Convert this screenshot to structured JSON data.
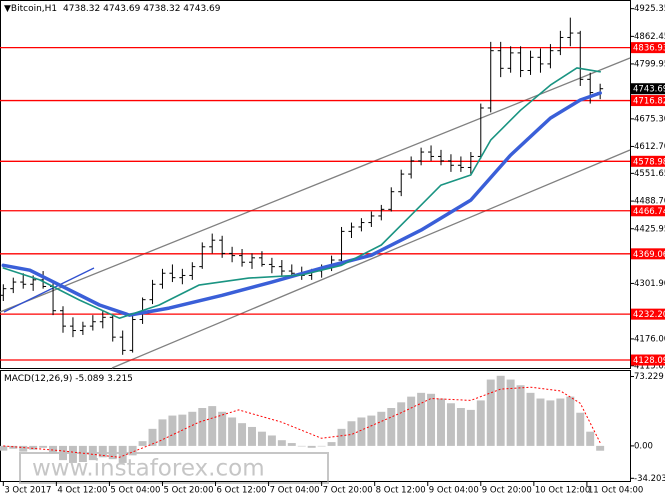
{
  "chart_data": [
    {
      "type": "ohlc",
      "title": "Bitcoin,H1",
      "header_values": [
        4738.32,
        4743.69,
        4738.32,
        4743.69
      ],
      "color": "#000000",
      "x": [
        20,
        23,
        26,
        29,
        32,
        35,
        38,
        41,
        44,
        47,
        50,
        53,
        56,
        59,
        62,
        65,
        68,
        71,
        74,
        77,
        80,
        83,
        86,
        89,
        92,
        95,
        98,
        101,
        104,
        107,
        110,
        113,
        116,
        119,
        122,
        125,
        128,
        131,
        134,
        137,
        140,
        143,
        146,
        149,
        152,
        155,
        158,
        161,
        164,
        167,
        170,
        173,
        176,
        179,
        182,
        185,
        188,
        191,
        194,
        197,
        200
      ],
      "open": [
        4275,
        4290,
        4305,
        4300,
        4310,
        4295,
        4240,
        4205,
        4195,
        4205,
        4215,
        4225,
        4180,
        4150,
        4220,
        4265,
        4300,
        4325,
        4315,
        4320,
        4340,
        4385,
        4400,
        4370,
        4365,
        4350,
        4360,
        4345,
        4340,
        4330,
        4325,
        4320,
        4330,
        4340,
        4355,
        4420,
        4430,
        4440,
        4455,
        4470,
        4510,
        4550,
        4580,
        4600,
        4590,
        4580,
        4570,
        4565,
        4590,
        4700,
        4830,
        4790,
        4825,
        4785,
        4815,
        4800,
        4830,
        4860,
        4870,
        4765,
        4735
      ],
      "high": [
        4300,
        4315,
        4325,
        4320,
        4330,
        4305,
        4250,
        4225,
        4215,
        4230,
        4240,
        4230,
        4195,
        4230,
        4270,
        4310,
        4335,
        4345,
        4335,
        4350,
        4395,
        4415,
        4410,
        4385,
        4380,
        4370,
        4375,
        4360,
        4355,
        4345,
        4340,
        4335,
        4345,
        4365,
        4430,
        4440,
        4450,
        4465,
        4480,
        4520,
        4560,
        4590,
        4610,
        4615,
        4605,
        4595,
        4590,
        4600,
        4710,
        4850,
        4850,
        4840,
        4840,
        4830,
        4835,
        4845,
        4875,
        4905,
        4875,
        4780,
        4755
      ],
      "low": [
        4262,
        4280,
        4290,
        4285,
        4290,
        4230,
        4190,
        4180,
        4185,
        4195,
        4200,
        4170,
        4140,
        4145,
        4210,
        4255,
        4290,
        4305,
        4300,
        4310,
        4335,
        4370,
        4360,
        4350,
        4340,
        4335,
        4340,
        4325,
        4320,
        4315,
        4310,
        4310,
        4315,
        4330,
        4350,
        4405,
        4420,
        4430,
        4445,
        4465,
        4500,
        4540,
        4570,
        4580,
        4570,
        4555,
        4555,
        4550,
        4585,
        4690,
        4770,
        4780,
        4770,
        4775,
        4780,
        4790,
        4820,
        4840,
        4750,
        4710,
        4720
      ],
      "close": [
        4290,
        4305,
        4300,
        4310,
        4295,
        4240,
        4205,
        4195,
        4205,
        4215,
        4225,
        4180,
        4150,
        4220,
        4265,
        4300,
        4325,
        4315,
        4320,
        4340,
        4385,
        4400,
        4370,
        4365,
        4350,
        4360,
        4345,
        4340,
        4330,
        4325,
        4320,
        4330,
        4340,
        4355,
        4420,
        4430,
        4440,
        4455,
        4470,
        4510,
        4550,
        4580,
        4600,
        4590,
        4580,
        4570,
        4565,
        4590,
        4700,
        4830,
        4790,
        4825,
        4785,
        4815,
        4800,
        4830,
        4860,
        4870,
        4765,
        4735,
        4743.69
      ],
      "lines": [
        {
          "color": "#3a5fd8",
          "width": 3.5,
          "x": [
            20,
            28,
            37,
            49,
            58,
            70,
            86,
            101,
            116,
            131,
            146,
            161,
            173,
            185,
            194,
            200
          ],
          "values": [
            4343,
            4332,
            4298,
            4253,
            4230,
            4246,
            4275,
            4305,
            4337,
            4366,
            4423,
            4491,
            4593,
            4677,
            4718,
            4734
          ]
        },
        {
          "color": "#1a9482",
          "width": 1.6,
          "x": [
            20,
            31,
            43,
            55,
            67,
            79,
            94,
            110,
            122,
            134,
            143,
            152,
            161,
            167,
            176,
            185,
            193,
            200
          ],
          "values": [
            4337,
            4310,
            4264,
            4223,
            4253,
            4298,
            4314,
            4321,
            4343,
            4389,
            4457,
            4525,
            4548,
            4627,
            4695,
            4752,
            4791,
            4782
          ]
        }
      ],
      "levels": {
        "color": "#ff0000",
        "values": [
          4836.93,
          4716.82,
          4578.98,
          4466.74,
          4369.06,
          {
            "value": 4232.2,
            "label": "4232.20"
          },
          4128.09
        ]
      },
      "last_price": 4743.69,
      "xlim": [
        19,
        209
      ],
      "xticks": [
        {
          "value": 20,
          "label": "3 Oct 2017"
        },
        {
          "value": 36,
          "label": "4 Oct 12:00"
        },
        {
          "value": 52,
          "label": "5 Oct 04:00"
        },
        {
          "value": 68,
          "label": "5 Oct 20:00"
        },
        {
          "value": 84,
          "label": "6 Oct 12:00"
        },
        {
          "value": 100,
          "label": "7 Oct 04:00"
        },
        {
          "value": 116,
          "label": "7 Oct 20:00"
        },
        {
          "value": 132,
          "label": "8 Oct 12:00"
        },
        {
          "value": 148,
          "label": "9 Oct 04:00"
        },
        {
          "value": 164,
          "label": "9 Oct 20:00"
        },
        {
          "value": 180,
          "label": "10 Oct 12:00"
        },
        {
          "value": 196,
          "label": "11 Oct 04:00"
        }
      ],
      "ylim": [
        4110,
        4945
      ],
      "yticks": [
        4925.35,
        4862.45,
        4799.95,
        {
          "value": 4675.3,
          "label": "4675.30"
        },
        {
          "value": 4612.7,
          "label": "4612.70"
        },
        4551.65,
        {
          "value": 4488.7,
          "label": "4488.70"
        },
        4425.95,
        {
          "value": 4301.9,
          "label": "4301.90"
        },
        {
          "value": 4176,
          "label": "4176.00"
        },
        4115.05
      ]
    },
    {
      "type": "bar",
      "title": "MACD(12,26,9)",
      "header_values": [
        -5.089,
        3.215
      ],
      "color": "#c0c0c0",
      "x": [
        20,
        23,
        26,
        29,
        32,
        35,
        38,
        41,
        44,
        47,
        50,
        53,
        56,
        59,
        62,
        65,
        68,
        71,
        74,
        77,
        80,
        83,
        86,
        89,
        92,
        95,
        98,
        101,
        104,
        107,
        110,
        113,
        116,
        119,
        122,
        125,
        128,
        131,
        134,
        137,
        140,
        143,
        146,
        149,
        152,
        155,
        158,
        161,
        164,
        167,
        170,
        173,
        176,
        179,
        182,
        185,
        188,
        191,
        194,
        197,
        200
      ],
      "values": [
        -5,
        -3,
        -6,
        -4,
        -2,
        -8,
        -15,
        -18,
        -17,
        -15,
        -12,
        -14,
        -18,
        -10,
        5,
        18,
        28,
        32,
        33,
        36,
        40,
        42,
        36,
        30,
        24,
        20,
        15,
        11,
        6,
        3,
        0,
        -2,
        0,
        4,
        18,
        26,
        30,
        32,
        36,
        40,
        46,
        52,
        56,
        55,
        50,
        45,
        40,
        38,
        48,
        70,
        74,
        70,
        64,
        56,
        50,
        48,
        50,
        52,
        35,
        15,
        -5.089
      ],
      "signal": {
        "color": "#ff0000",
        "x": [
          20,
          37,
          55,
          67,
          79,
          91,
          104,
          116,
          125,
          140,
          149,
          161,
          170,
          179,
          188,
          194,
          200
        ],
        "values": [
          0,
          -5,
          -12,
          5,
          25,
          38,
          25,
          8,
          12,
          35,
          50,
          48,
          60,
          62,
          58,
          45,
          3.215
        ]
      },
      "xlim": [
        19,
        209
      ],
      "ylim": [
        -36,
        78
      ],
      "yticks": [
        73.229,
        {
          "value": 0,
          "label": "0.00"
        },
        -34.203
      ]
    }
  ],
  "watermark": "www.instaforex.com"
}
